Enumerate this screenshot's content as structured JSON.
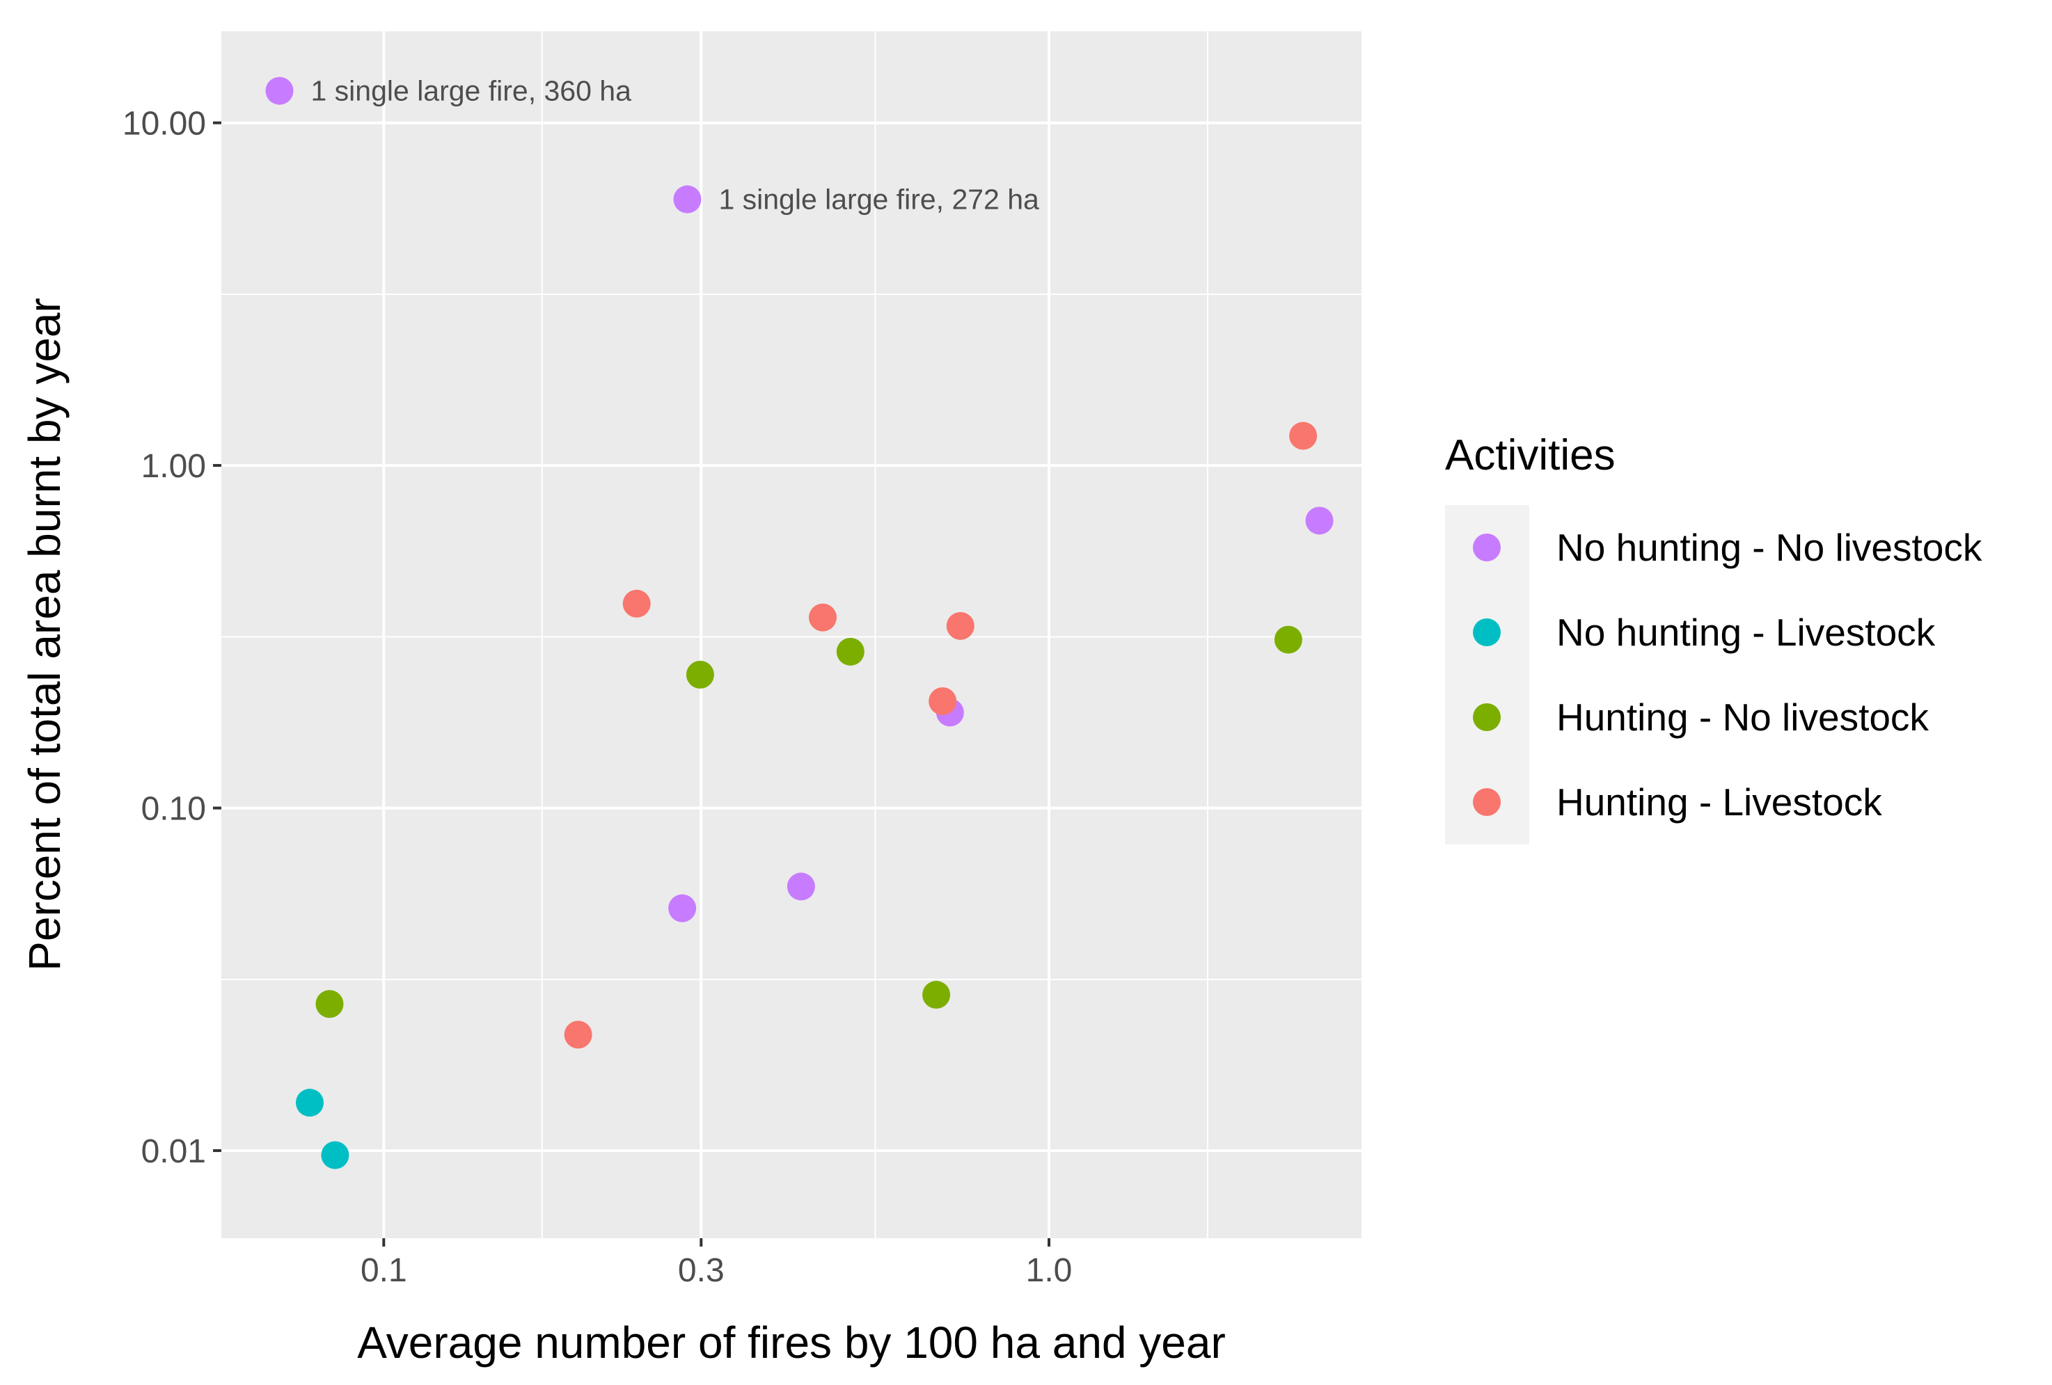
{
  "chart_data": {
    "type": "scatter",
    "xlabel": "Average number of fires by 100 ha and year",
    "ylabel": "Percent of total area burnt by year",
    "xscale": "log10",
    "yscale": "log10",
    "xlim": [
      0.057,
      2.95
    ],
    "ylim": [
      0.00555,
      18.5
    ],
    "xticks": [
      0.1,
      0.3,
      1.0
    ],
    "xtick_labels": [
      "0.1",
      "0.3",
      "1.0"
    ],
    "yticks": [
      0.01,
      0.1,
      1.0,
      10.0
    ],
    "ytick_labels": [
      "0.01",
      "0.10",
      "1.00",
      "10.00"
    ],
    "x_minor_gridlines": [
      0.173,
      0.548,
      1.732
    ],
    "y_minor_gridlines": [
      0.0316,
      0.316,
      3.16
    ],
    "grid": true,
    "legend": {
      "title": "Activities",
      "position": "right",
      "entries": [
        {
          "name": "No hunting - No livestock",
          "color": "#C77CFF"
        },
        {
          "name": "No hunting - Livestock",
          "color": "#00BFC4"
        },
        {
          "name": "Hunting - No livestock",
          "color": "#7CAE00"
        },
        {
          "name": "Hunting - Livestock",
          "color": "#F8766D"
        }
      ]
    },
    "series": [
      {
        "name": "No hunting - No livestock",
        "color": "#C77CFF",
        "points": [
          {
            "x": 0.0697,
            "y": 12.4
          },
          {
            "x": 0.286,
            "y": 5.98
          },
          {
            "x": 0.71,
            "y": 0.19
          },
          {
            "x": 2.55,
            "y": 0.69
          },
          {
            "x": 0.281,
            "y": 0.051
          },
          {
            "x": 0.424,
            "y": 0.059
          }
        ]
      },
      {
        "name": "No hunting - Livestock",
        "color": "#00BFC4",
        "points": [
          {
            "x": 0.0774,
            "y": 0.0138
          },
          {
            "x": 0.0845,
            "y": 0.0097
          }
        ]
      },
      {
        "name": "Hunting - No livestock",
        "color": "#7CAE00",
        "points": [
          {
            "x": 0.0829,
            "y": 0.0268
          },
          {
            "x": 0.299,
            "y": 0.245
          },
          {
            "x": 0.503,
            "y": 0.286
          },
          {
            "x": 0.677,
            "y": 0.0285
          },
          {
            "x": 2.29,
            "y": 0.31
          }
        ]
      },
      {
        "name": "Hunting - Livestock",
        "color": "#F8766D",
        "points": [
          {
            "x": 0.196,
            "y": 0.0218
          },
          {
            "x": 0.24,
            "y": 0.395
          },
          {
            "x": 0.457,
            "y": 0.36
          },
          {
            "x": 0.692,
            "y": 0.205
          },
          {
            "x": 0.736,
            "y": 0.34
          },
          {
            "x": 2.41,
            "y": 1.22
          }
        ]
      }
    ],
    "annotations": [
      {
        "text": "1 single large fire, 360 ha",
        "x": 0.0697,
        "y": 12.4
      },
      {
        "text": "1 single large fire, 272 ha",
        "x": 0.286,
        "y": 5.98
      }
    ]
  }
}
